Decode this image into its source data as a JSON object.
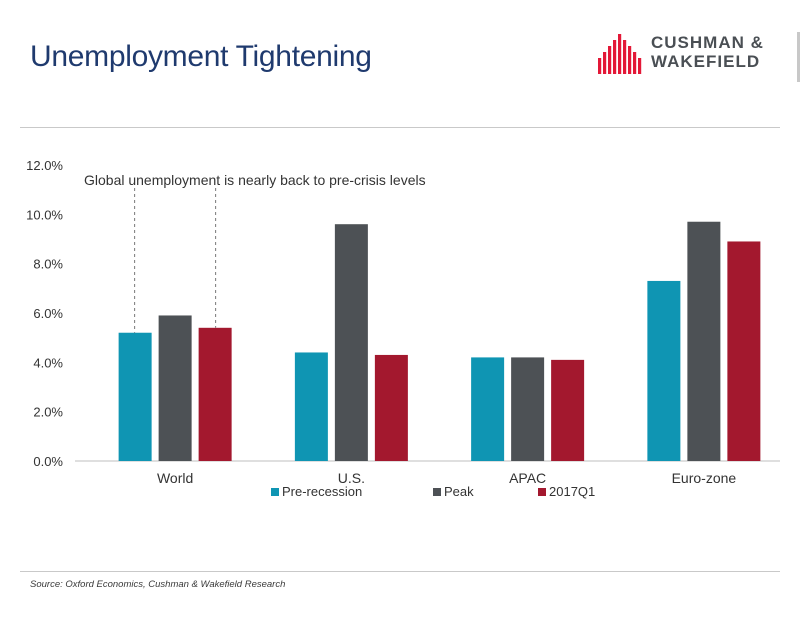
{
  "header": {
    "title": "Unemployment Tightening",
    "logo_line1": "CUSHMAN &",
    "logo_line2": "WAKEFIELD"
  },
  "colors": {
    "title": "#1f3a6e",
    "pre_recession": "#0f95b3",
    "peak": "#4d5155",
    "q1_2017": "#a3182e",
    "logo_red": "#e31837"
  },
  "chart_data": {
    "type": "bar",
    "categories": [
      "World",
      "U.S.",
      "APAC",
      "Euro-zone"
    ],
    "series": [
      {
        "name": "Pre-recession",
        "values": [
          5.2,
          4.4,
          4.2,
          7.3
        ]
      },
      {
        "name": "Peak",
        "values": [
          5.9,
          9.6,
          4.2,
          9.7
        ]
      },
      {
        "name": "2017Q1",
        "values": [
          5.4,
          4.3,
          4.1,
          8.9
        ]
      }
    ],
    "ylim": [
      0,
      12
    ],
    "y_ticks": [
      "0.0%",
      "2.0%",
      "4.0%",
      "6.0%",
      "8.0%",
      "10.0%",
      "12.0%"
    ],
    "annotation": "Global unemployment is nearly back to pre-crisis levels",
    "legend_position": "bottom",
    "grid": false
  },
  "footer": {
    "source": "Source:  Oxford Economics, Cushman & Wakefield Research"
  }
}
